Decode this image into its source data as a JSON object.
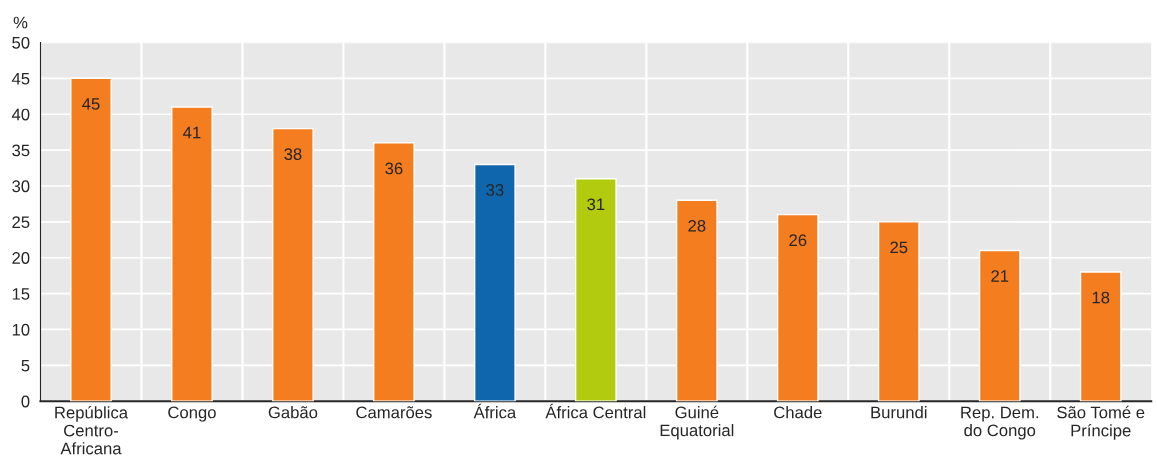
{
  "chart_data": {
    "type": "bar",
    "ylabel": "%",
    "categories": [
      "República\nCentro-\nAfricana",
      "Congo",
      "Gabão",
      "Camarões",
      "África",
      "África Central",
      "Guiné\nEquatorial",
      "Chade",
      "Burundi",
      "Rep. Dem.\ndo Congo",
      "São Tomé e\nPríncipe"
    ],
    "values": [
      45,
      41,
      38,
      36,
      33,
      31,
      28,
      26,
      25,
      21,
      18
    ],
    "colors": [
      "#f47d20",
      "#f47d20",
      "#f47d20",
      "#f47d20",
      "#1066ad",
      "#b2cb0e",
      "#f47d20",
      "#f47d20",
      "#f47d20",
      "#f47d20",
      "#f47d20"
    ],
    "ylim": [
      0,
      50
    ],
    "yticks": [
      0,
      5,
      10,
      15,
      20,
      25,
      30,
      35,
      40,
      45,
      50
    ],
    "grid": true,
    "data_labels": true
  }
}
